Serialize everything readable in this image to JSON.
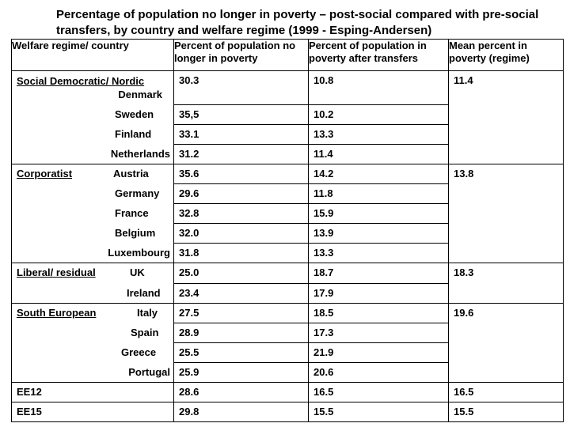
{
  "title": "Percentage of population no longer in poverty – post-social compared with pre-social transfers, by country and welfare regime (1999 - Esping-Andersen)",
  "headers": {
    "regime_country": "Welfare regime/ country",
    "no_longer": "Percent of population no longer in poverty",
    "after_transfers": "Percent of population in poverty after transfers",
    "mean": "Mean percent in poverty (regime)"
  },
  "regimes": {
    "social_democratic": {
      "name": "Social Democratic/ Nordic",
      "mean": "11.4"
    },
    "corporatist": {
      "name": "Corporatist",
      "mean": "13.8"
    },
    "liberal": {
      "name": "Liberal/ residual",
      "mean": "18.3"
    },
    "south_european": {
      "name": "South European ",
      "mean": "19.6"
    }
  },
  "rows": {
    "denmark": {
      "country": "Denmark",
      "no_longer": "30.3",
      "after": "10.8"
    },
    "sweden": {
      "country": "Sweden",
      "no_longer": "35,5",
      "after": "10.2"
    },
    "finland": {
      "country": "Finland",
      "no_longer": "33.1",
      "after": "13.3"
    },
    "netherlands": {
      "country": "Netherlands",
      "no_longer": "31.2",
      "after": "11.4"
    },
    "austria": {
      "country": "Austria",
      "no_longer": "35.6",
      "after": "14.2"
    },
    "germany": {
      "country": "Germany",
      "no_longer": "29.6",
      "after": "11.8"
    },
    "france": {
      "country": "France",
      "no_longer": "32.8",
      "after": "15.9"
    },
    "belgium": {
      "country": "Belgium",
      "no_longer": "32.0",
      "after": "13.9"
    },
    "luxembourg": {
      "country": "Luxembourg",
      "no_longer": "31.8",
      "after": "13.3"
    },
    "uk": {
      "country": "UK",
      "no_longer": "25.0",
      "after": "18.7"
    },
    "ireland": {
      "country": "Ireland",
      "no_longer": "23.4",
      "after": "17.9"
    },
    "italy": {
      "country": "Italy",
      "no_longer": "27.5",
      "after": "18.5"
    },
    "spain": {
      "country": "Spain",
      "no_longer": "28.9",
      "after": "17.3"
    },
    "greece": {
      "country": "Greece",
      "no_longer": "25.5",
      "after": "21.9"
    },
    "portugal": {
      "country": "Portugal",
      "no_longer": "25.9",
      "after": "20.6"
    }
  },
  "totals": {
    "ee12": {
      "label": "EE12",
      "no_longer": "28.6",
      "after": "16.5",
      "mean": "16.5"
    },
    "ee15": {
      "label": "EE15",
      "no_longer": "29.8",
      "after": "15.5",
      "mean": "15.5"
    }
  }
}
